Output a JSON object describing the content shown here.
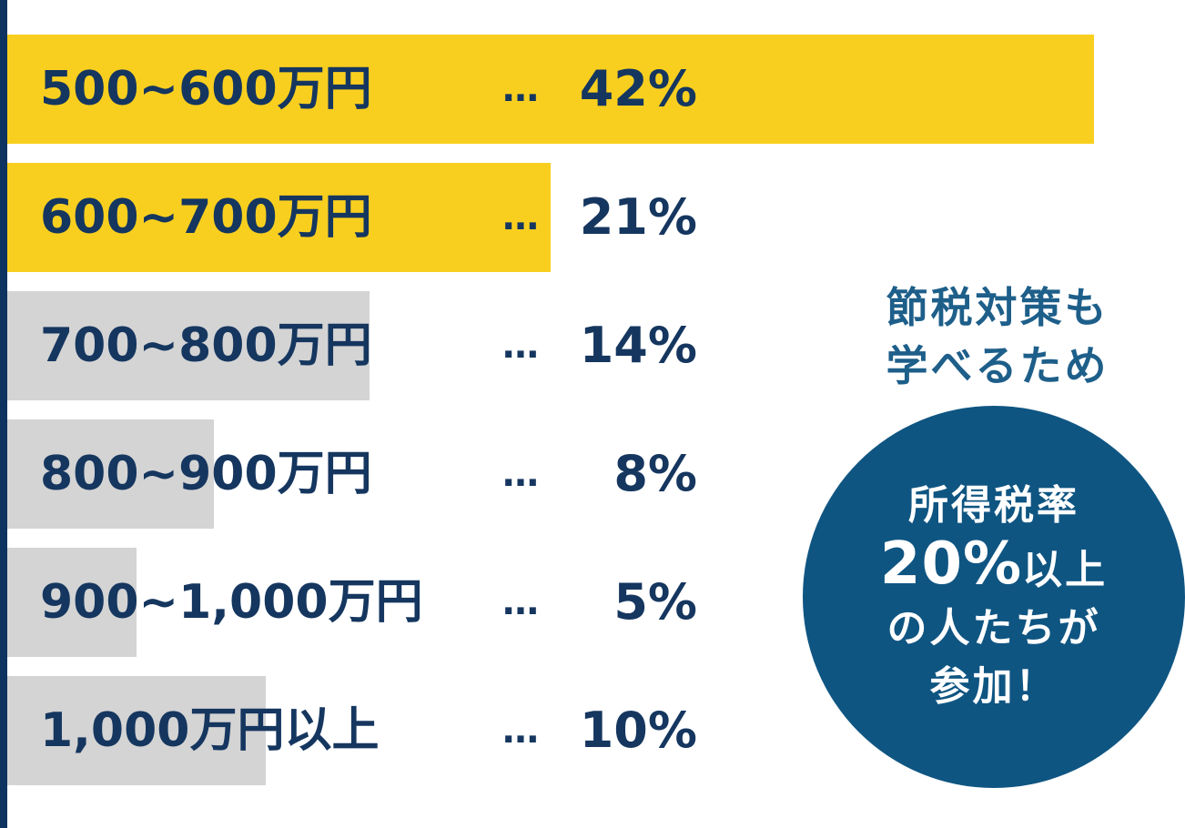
{
  "chart_data": {
    "type": "bar",
    "orientation": "horizontal",
    "categories": [
      "500~600万円",
      "600~700万円",
      "700~800万円",
      "800~900万円",
      "900~1,000万円",
      "1,000万円以上"
    ],
    "values": [
      42,
      21,
      14,
      8,
      5,
      10
    ],
    "value_labels": [
      "42%",
      "21%",
      "14%",
      "8%",
      "5%",
      "10%"
    ],
    "separator": "…",
    "highlight_count": 2,
    "xlim": [
      0,
      42
    ],
    "title": "",
    "xlabel": "",
    "ylabel": ""
  },
  "colors": {
    "highlight_bar": "#f9cf1f",
    "default_bar": "#d4d4d4",
    "text": "#15365f",
    "accent_rule": "#0d3460",
    "heading_text": "#1e5f8a",
    "badge_bg": "#0f5582",
    "badge_text": "#ffffff"
  },
  "side_note": {
    "heading_line1": "節税対策も",
    "heading_line2": "学べるため",
    "badge_line1": "所得税率",
    "badge_line2_big": "20%",
    "badge_line2_rest": "以上",
    "badge_line3": "の人たちが",
    "badge_line4": "参加！"
  }
}
